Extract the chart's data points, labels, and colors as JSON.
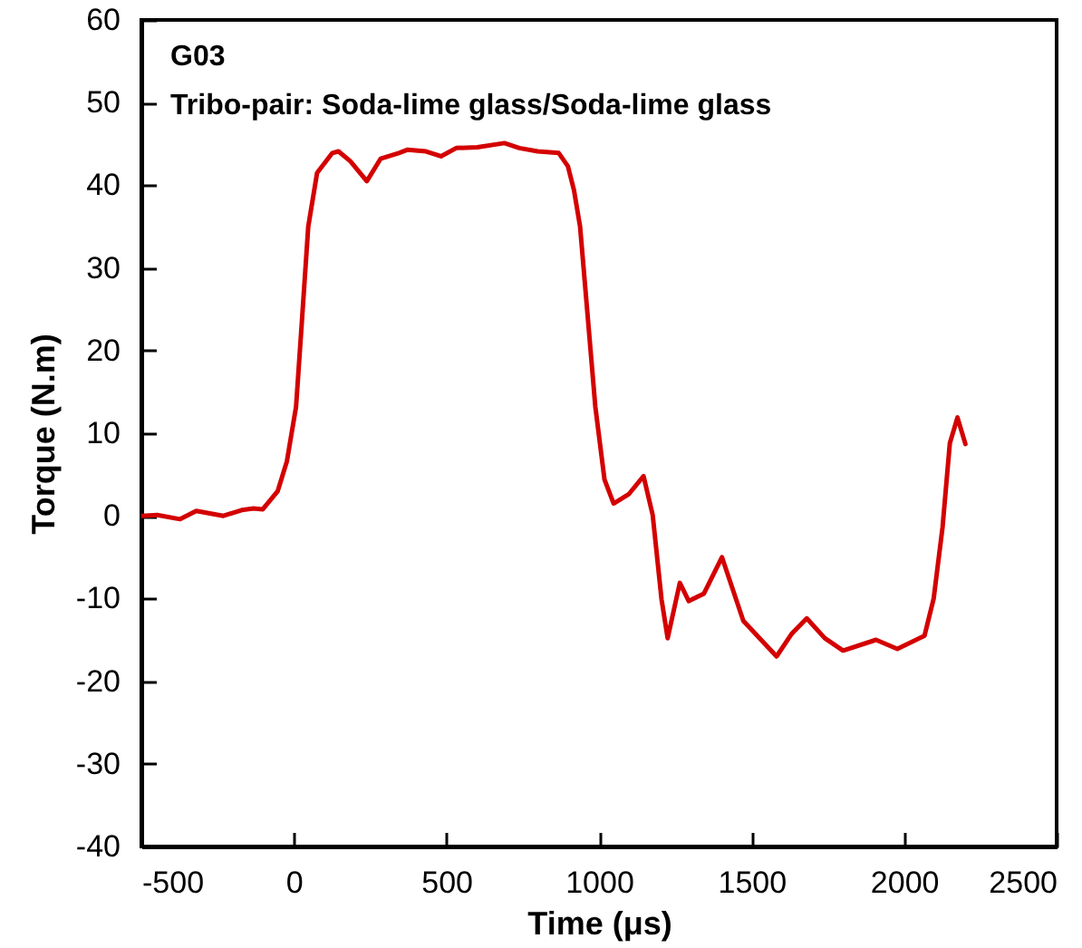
{
  "chart_data": {
    "type": "line",
    "title": "G03",
    "subtitle": "Tribo-pair: Soda-lime glass/Soda-lime glass",
    "xlabel": "Time (μs)",
    "ylabel": "Torque (N.m)",
    "x": [
      -500,
      -448,
      -373,
      -320,
      -231,
      -171,
      -132,
      -102,
      -53,
      -23,
      7,
      27,
      47,
      76,
      126,
      146,
      185,
      239,
      284,
      344,
      373,
      433,
      482,
      532,
      601,
      690,
      739,
      799,
      868,
      898,
      918,
      938,
      958,
      988,
      1018,
      1048,
      1097,
      1146,
      1176,
      1205,
      1225,
      1265,
      1294,
      1344,
      1403,
      1473,
      1582,
      1631,
      1681,
      1740,
      1800,
      1908,
      1978,
      2067,
      2097,
      2126,
      2150,
      2175,
      2201
    ],
    "series": [
      {
        "color": "#d40000",
        "values": [
          0,
          0.1,
          -0.4,
          0.6,
          0,
          0.7,
          0.9,
          0.8,
          3,
          6.6,
          13.2,
          24,
          35,
          41.5,
          43.9,
          44.1,
          42.9,
          40.5,
          43.2,
          43.9,
          44.3,
          44.1,
          43.5,
          44.5,
          44.6,
          45.1,
          44.5,
          44.1,
          43.9,
          42.3,
          39.4,
          35,
          26.3,
          13.2,
          4.4,
          1.5,
          2.6,
          4.8,
          0.1,
          -10.1,
          -14.8,
          -8.1,
          -10.3,
          -9.4,
          -5,
          -12.7,
          -17,
          -14.3,
          -12.4,
          -14.8,
          -16.3,
          -15,
          -16.1,
          -14.5,
          -10,
          -1.4,
          8.8,
          11.9,
          8.7
        ]
      }
    ],
    "xlim": [
      -500,
      2500
    ],
    "xticks": [
      -500,
      0,
      500,
      1000,
      1500,
      2000,
      2500
    ],
    "ylim": [
      -40,
      60
    ],
    "yticks": [
      -40,
      -30,
      -20,
      -10,
      0,
      10,
      20,
      30,
      40,
      50,
      60
    ],
    "grid": false,
    "marker": "none",
    "line_style": "solid"
  }
}
